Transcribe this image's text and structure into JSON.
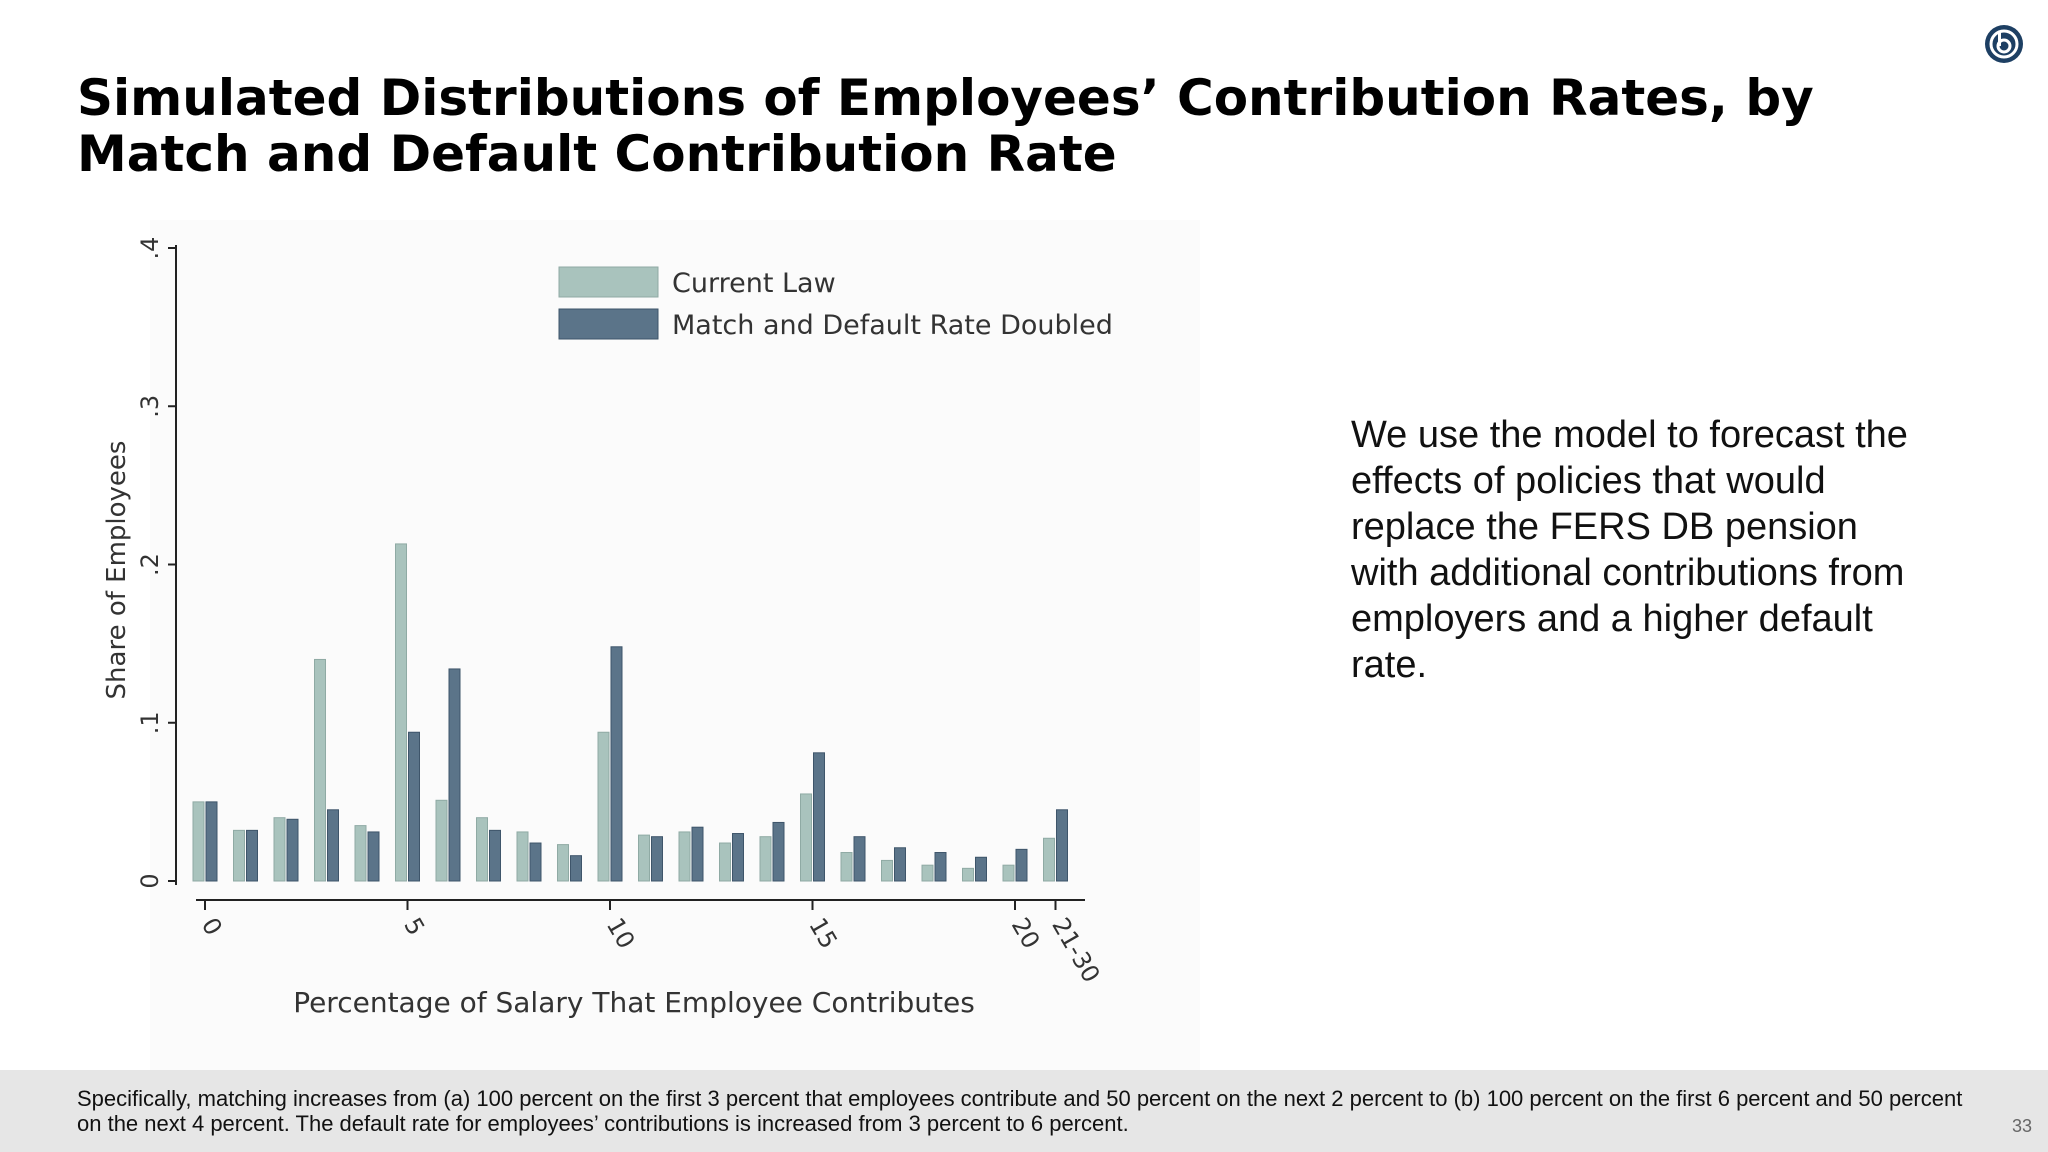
{
  "slide": {
    "title": "Simulated Distributions of Employees’ Contribution Rates, by Match and Default Contribution Rate",
    "body_text": "We use the model to forecast the effects of policies that would replace the FERS DB pension with additional contributions from employers and a higher default rate.",
    "footnote": "Specifically, matching increases from (a) 100 percent on the first 3 percent that employees contribute and 50 percent on the next 2 percent to (b) 100 percent on the first 6 percent and 50 percent on the next 4 percent. The default rate for employees’ contributions is increased from 3 percent to 6 percent.",
    "page_number": "33",
    "logo_icon": "circle-logo-icon"
  },
  "chart_data": {
    "type": "bar",
    "xlabel": "Percentage of Salary That Employee Contributes",
    "ylabel": "Share of Employees",
    "ylim": [
      0,
      0.4
    ],
    "yticks": [
      "0",
      ".1",
      ".2",
      ".3",
      ".4"
    ],
    "xticks": [
      "0",
      "5",
      "10",
      "15",
      "20",
      "21-30"
    ],
    "legend_position": "top",
    "categories": [
      "0",
      "1",
      "2",
      "3",
      "4",
      "5",
      "6",
      "7",
      "8",
      "9",
      "10",
      "11",
      "12",
      "13",
      "14",
      "15",
      "16",
      "17",
      "18",
      "19",
      "20",
      "21-30"
    ],
    "series": [
      {
        "name": "Current Law",
        "color": "#a9c3bd",
        "values": [
          0.05,
          0.032,
          0.04,
          0.14,
          0.035,
          0.213,
          0.051,
          0.04,
          0.031,
          0.023,
          0.094,
          0.029,
          0.031,
          0.024,
          0.028,
          0.055,
          0.018,
          0.013,
          0.01,
          0.008,
          0.01,
          0.027
        ]
      },
      {
        "name": "Match and Default Rate Doubled",
        "color": "#5b7489",
        "values": [
          0.05,
          0.032,
          0.039,
          0.045,
          0.031,
          0.094,
          0.134,
          0.032,
          0.024,
          0.016,
          0.148,
          0.028,
          0.034,
          0.03,
          0.037,
          0.081,
          0.028,
          0.021,
          0.018,
          0.015,
          0.02,
          0.045
        ]
      }
    ]
  }
}
